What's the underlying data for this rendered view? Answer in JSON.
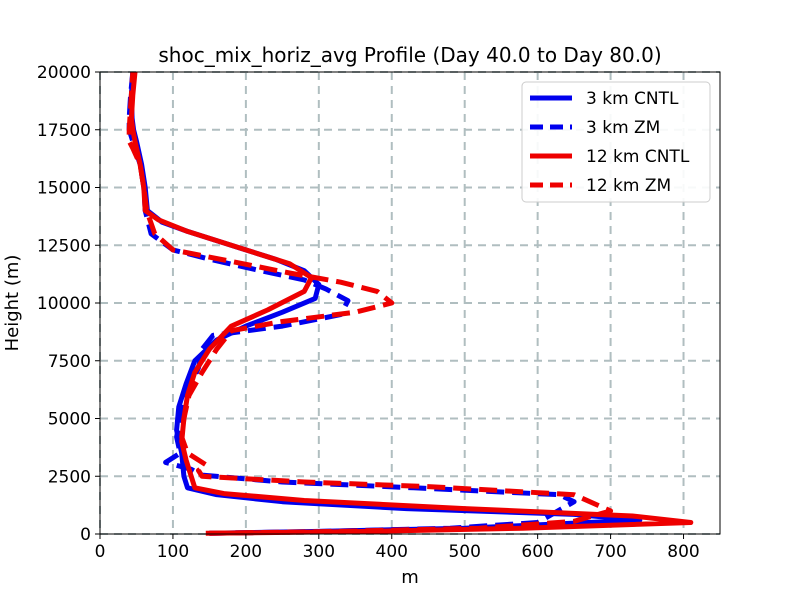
{
  "chart_data": {
    "type": "line",
    "title": "shoc_mix_horiz_avg Profile (Day 40.0 to Day 80.0)",
    "xlabel": "m",
    "ylabel": "Height (m)",
    "xlim": [
      0,
      850
    ],
    "ylim": [
      0,
      20000
    ],
    "xticks": [
      "0",
      "100",
      "200",
      "300",
      "400",
      "500",
      "600",
      "700",
      "800"
    ],
    "yticks": [
      "0",
      "2500",
      "5000",
      "7500",
      "10000",
      "12500",
      "15000",
      "17500",
      "20000"
    ],
    "grid": true,
    "legend_position": "top-right",
    "series": [
      {
        "name": "3 km CNTL",
        "color": "#0000ee",
        "style": "solid",
        "points": [
          [
            150,
            30
          ],
          [
            310,
            120
          ],
          [
            500,
            250
          ],
          [
            740,
            600
          ],
          [
            650,
            850
          ],
          [
            420,
            1100
          ],
          [
            250,
            1400
          ],
          [
            160,
            1700
          ],
          [
            120,
            2000
          ],
          [
            115,
            2500
          ],
          [
            112,
            3500
          ],
          [
            105,
            4500
          ],
          [
            108,
            5500
          ],
          [
            118,
            6500
          ],
          [
            130,
            7500
          ],
          [
            160,
            8400
          ],
          [
            200,
            9000
          ],
          [
            250,
            9600
          ],
          [
            295,
            10200
          ],
          [
            300,
            10800
          ],
          [
            280,
            11400
          ],
          [
            240,
            11900
          ],
          [
            190,
            12400
          ],
          [
            120,
            13100
          ],
          [
            85,
            13500
          ],
          [
            65,
            14000
          ],
          [
            62,
            15000
          ],
          [
            57,
            16000
          ],
          [
            50,
            17000
          ],
          [
            46,
            17500
          ],
          [
            44,
            18000
          ],
          [
            43,
            19000
          ],
          [
            45,
            20000
          ]
        ]
      },
      {
        "name": "3 km ZM",
        "color": "#0000ee",
        "style": "dashed",
        "points": [
          [
            150,
            30
          ],
          [
            300,
            110
          ],
          [
            480,
            250
          ],
          [
            600,
            500
          ],
          [
            650,
            1400
          ],
          [
            630,
            1700
          ],
          [
            430,
            2000
          ],
          [
            250,
            2250
          ],
          [
            140,
            2550
          ],
          [
            125,
            2800
          ],
          [
            90,
            3100
          ],
          [
            110,
            3500
          ],
          [
            105,
            4200
          ],
          [
            110,
            5000
          ],
          [
            120,
            6200
          ],
          [
            135,
            7200
          ],
          [
            140,
            8000
          ],
          [
            155,
            8600
          ],
          [
            250,
            9000
          ],
          [
            330,
            9500
          ],
          [
            340,
            10100
          ],
          [
            310,
            10600
          ],
          [
            280,
            11000
          ],
          [
            220,
            11400
          ],
          [
            150,
            11900
          ],
          [
            100,
            12300
          ],
          [
            70,
            13000
          ],
          [
            62,
            14000
          ],
          [
            60,
            15000
          ],
          [
            55,
            16000
          ],
          [
            45,
            17000
          ],
          [
            40,
            17500
          ],
          [
            40,
            18000
          ],
          [
            42,
            19000
          ],
          [
            45,
            20000
          ]
        ]
      },
      {
        "name": "12 km CNTL",
        "color": "#ee0000",
        "style": "solid",
        "points": [
          [
            145,
            30
          ],
          [
            360,
            110
          ],
          [
            580,
            250
          ],
          [
            810,
            500
          ],
          [
            730,
            780
          ],
          [
            500,
            1100
          ],
          [
            280,
            1450
          ],
          [
            170,
            1750
          ],
          [
            130,
            2000
          ],
          [
            125,
            2500
          ],
          [
            118,
            3200
          ],
          [
            112,
            4000
          ],
          [
            115,
            5000
          ],
          [
            120,
            6000
          ],
          [
            130,
            7000
          ],
          [
            150,
            8000
          ],
          [
            180,
            9000
          ],
          [
            230,
            9700
          ],
          [
            280,
            10500
          ],
          [
            290,
            11100
          ],
          [
            260,
            11700
          ],
          [
            200,
            12300
          ],
          [
            120,
            13100
          ],
          [
            80,
            13600
          ],
          [
            62,
            14000
          ],
          [
            60,
            15000
          ],
          [
            55,
            16000
          ],
          [
            48,
            17000
          ],
          [
            45,
            17500
          ],
          [
            43,
            18000
          ],
          [
            45,
            19000
          ],
          [
            48,
            20000
          ]
        ]
      },
      {
        "name": "12 km ZM",
        "color": "#ee0000",
        "style": "dashed",
        "points": [
          [
            150,
            30
          ],
          [
            320,
            110
          ],
          [
            520,
            250
          ],
          [
            650,
            550
          ],
          [
            700,
            1000
          ],
          [
            650,
            1700
          ],
          [
            450,
            2050
          ],
          [
            280,
            2250
          ],
          [
            140,
            2500
          ],
          [
            135,
            2750
          ],
          [
            145,
            3000
          ],
          [
            120,
            3500
          ],
          [
            112,
            4200
          ],
          [
            115,
            5000
          ],
          [
            122,
            6000
          ],
          [
            140,
            7000
          ],
          [
            160,
            8000
          ],
          [
            180,
            8800
          ],
          [
            250,
            9200
          ],
          [
            350,
            9600
          ],
          [
            400,
            10000
          ],
          [
            380,
            10500
          ],
          [
            330,
            10900
          ],
          [
            260,
            11300
          ],
          [
            180,
            11800
          ],
          [
            100,
            12300
          ],
          [
            75,
            13000
          ],
          [
            64,
            14000
          ],
          [
            60,
            15000
          ],
          [
            55,
            16000
          ],
          [
            45,
            16700
          ],
          [
            40,
            17000
          ],
          [
            40,
            17500
          ],
          [
            42,
            18500
          ],
          [
            45,
            20000
          ]
        ]
      }
    ]
  }
}
